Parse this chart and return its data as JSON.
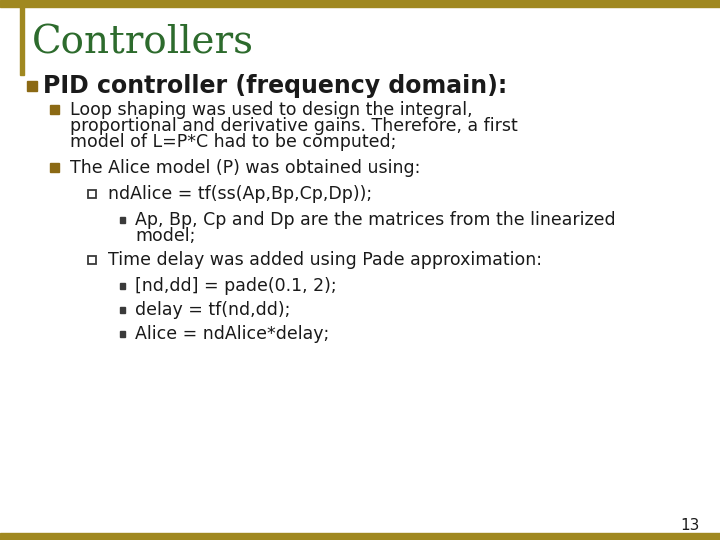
{
  "title": "Controllers",
  "title_color": "#2d6b2d",
  "title_fontsize": 28,
  "border_color": "#a08820",
  "background_color": "#ffffff",
  "slide_number": "13",
  "heading": "PID controller (frequency domain):",
  "heading_fontsize": 17,
  "content": [
    {
      "level": 1,
      "text": "Loop shaping was used to design the integral,\nproportional and derivative gains. Therefore, a first\nmodel of L=P*C had to be computed;",
      "fontsize": 12.5
    },
    {
      "level": 1,
      "text": "The Alice model (P) was obtained using:",
      "fontsize": 12.5
    },
    {
      "level": 2,
      "text": "ndAlice = tf(ss(Ap,Bp,Cp,Dp));",
      "fontsize": 12.5
    },
    {
      "level": 3,
      "text": "Ap, Bp, Cp and Dp are the matrices from the linearized\nmodel;",
      "fontsize": 12.5
    },
    {
      "level": 2,
      "text": "Time delay was added using Pade approximation:",
      "fontsize": 12.5
    },
    {
      "level": 3,
      "text": "[nd,dd] = pade(0.1, 2);",
      "fontsize": 12.5
    },
    {
      "level": 3,
      "text": "delay = tf(nd,dd);",
      "fontsize": 12.5
    },
    {
      "level": 3,
      "text": "Alice = ndAlice*delay;",
      "fontsize": 12.5
    }
  ],
  "bullet1_color": "#8b6914",
  "bullet2_color": "#3a3a3a",
  "bullet3_color": "#3a3a3a",
  "text_color": "#1a1a1a",
  "left_bar_color": "#a08820",
  "heading_bullet_color": "#8b6914"
}
